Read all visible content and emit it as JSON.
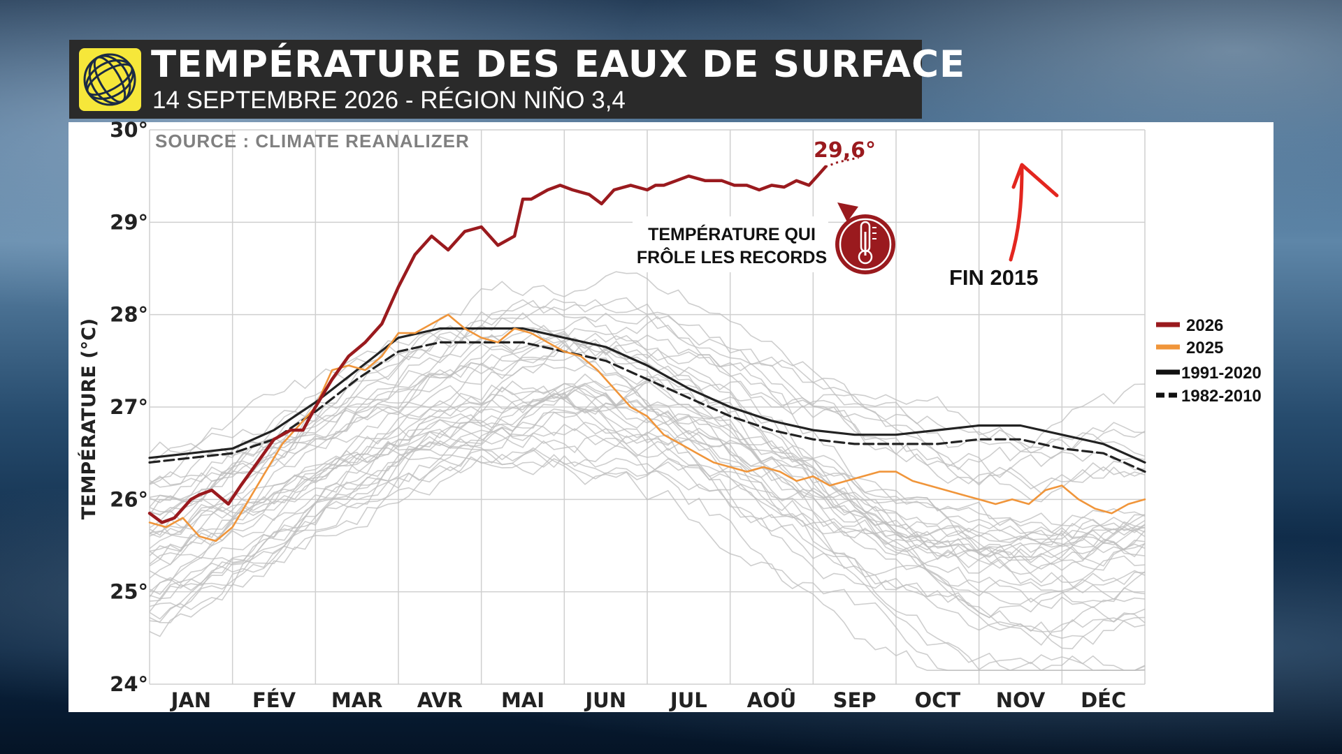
{
  "header": {
    "title": "TEMPÉRATURE DES EAUX DE SURFACE",
    "subtitle": "14 SEPTEMBRE 2026 - RÉGION NIÑO 3,4"
  },
  "colors": {
    "series_2026": "#9a1a1e",
    "series_2025": "#f0953a",
    "climatology": "#222222",
    "historical": "#bdbdbd",
    "logo": "#f6e73a"
  },
  "chart_data": {
    "type": "line",
    "source_label": "SOURCE : CLIMATE REANALIZER",
    "ylabel": "TEMPÉRATURE (°C)",
    "ylim": [
      24,
      30
    ],
    "yticks": [
      "24°",
      "25°",
      "26°",
      "27°",
      "28°",
      "29°",
      "30°"
    ],
    "xlim": [
      0,
      12
    ],
    "months": [
      "JAN",
      "FÉV",
      "MAR",
      "AVR",
      "MAI",
      "JUN",
      "JUL",
      "AOÛ",
      "SEP",
      "OCT",
      "NOV",
      "DÉC"
    ],
    "grid": true,
    "legend_position": "right",
    "legend": [
      "2026",
      "2025",
      "1991-2020",
      "1982-2010"
    ],
    "annotations": {
      "peak_label": "29,6°",
      "record_line1": "TEMPÉRATURE QUI",
      "record_line2": "FRÔLE LES RECORDS",
      "fin_label": "FIN 2015"
    },
    "series": [
      {
        "name": "2026",
        "style": "solid",
        "color": "#9a1a1e",
        "x": [
          0,
          0.15,
          0.3,
          0.5,
          0.6,
          0.75,
          0.95,
          1.1,
          1.3,
          1.5,
          1.7,
          1.85,
          2.0,
          2.2,
          2.4,
          2.6,
          2.8,
          3.0,
          3.2,
          3.4,
          3.6,
          3.8,
          4.0,
          4.2,
          4.4,
          4.5,
          4.6,
          4.8,
          4.95,
          5.1,
          5.3,
          5.45,
          5.6,
          5.8,
          6.0,
          6.1,
          6.2,
          6.35,
          6.5,
          6.7,
          6.9,
          7.05,
          7.2,
          7.35,
          7.5,
          7.65,
          7.8,
          7.95,
          8.05,
          8.15
        ],
        "y": [
          25.85,
          25.75,
          25.8,
          26.0,
          26.05,
          26.1,
          25.95,
          26.15,
          26.4,
          26.65,
          26.75,
          26.75,
          27.0,
          27.3,
          27.55,
          27.7,
          27.9,
          28.3,
          28.65,
          28.85,
          28.7,
          28.9,
          28.95,
          28.75,
          28.85,
          29.25,
          29.25,
          29.35,
          29.4,
          29.35,
          29.3,
          29.2,
          29.35,
          29.4,
          29.35,
          29.4,
          29.4,
          29.45,
          29.5,
          29.45,
          29.45,
          29.4,
          29.4,
          29.35,
          29.4,
          29.38,
          29.45,
          29.4,
          29.5,
          29.6
        ]
      },
      {
        "name": "2025",
        "style": "solid",
        "color": "#f0953a",
        "x": [
          0,
          0.2,
          0.4,
          0.6,
          0.8,
          1.0,
          1.2,
          1.4,
          1.6,
          1.8,
          2.0,
          2.2,
          2.4,
          2.6,
          2.8,
          3.0,
          3.2,
          3.4,
          3.6,
          3.8,
          4.0,
          4.2,
          4.4,
          4.6,
          4.8,
          5.0,
          5.2,
          5.4,
          5.6,
          5.8,
          6.0,
          6.2,
          6.4,
          6.6,
          6.8,
          7.0,
          7.2,
          7.4,
          7.6,
          7.8,
          8.0,
          8.2,
          8.4,
          8.6,
          8.8,
          9.0,
          9.2,
          9.4,
          9.6,
          9.8,
          10.0,
          10.2,
          10.4,
          10.6,
          10.8,
          11.0,
          11.2,
          11.4,
          11.6,
          11.8,
          12.0
        ],
        "y": [
          25.75,
          25.7,
          25.8,
          25.6,
          25.55,
          25.7,
          26.0,
          26.3,
          26.6,
          26.8,
          27.0,
          27.4,
          27.45,
          27.4,
          27.55,
          27.8,
          27.8,
          27.9,
          28.0,
          27.85,
          27.75,
          27.7,
          27.85,
          27.8,
          27.7,
          27.6,
          27.55,
          27.4,
          27.2,
          27.0,
          26.9,
          26.7,
          26.6,
          26.5,
          26.4,
          26.35,
          26.3,
          26.35,
          26.3,
          26.2,
          26.25,
          26.15,
          26.2,
          26.25,
          26.3,
          26.3,
          26.2,
          26.15,
          26.1,
          26.05,
          26.0,
          25.95,
          26.0,
          25.95,
          26.1,
          26.15,
          26.0,
          25.9,
          25.85,
          25.95,
          26.0
        ]
      },
      {
        "name": "1991-2020",
        "style": "solid",
        "color": "#222222",
        "x": [
          0,
          0.5,
          1.0,
          1.5,
          2.0,
          2.5,
          3.0,
          3.5,
          4.0,
          4.5,
          5.0,
          5.5,
          6.0,
          6.5,
          7.0,
          7.5,
          8.0,
          8.5,
          9.0,
          9.5,
          10.0,
          10.5,
          11.0,
          11.5,
          12.0
        ],
        "y": [
          26.45,
          26.5,
          26.55,
          26.75,
          27.05,
          27.4,
          27.75,
          27.85,
          27.85,
          27.85,
          27.75,
          27.65,
          27.45,
          27.2,
          27.0,
          26.85,
          26.75,
          26.7,
          26.7,
          26.75,
          26.8,
          26.8,
          26.7,
          26.6,
          26.4
        ]
      },
      {
        "name": "1982-2010",
        "style": "dashed",
        "color": "#222222",
        "x": [
          0,
          0.5,
          1.0,
          1.5,
          2.0,
          2.5,
          3.0,
          3.5,
          4.0,
          4.5,
          5.0,
          5.5,
          6.0,
          6.5,
          7.0,
          7.5,
          8.0,
          8.5,
          9.0,
          9.5,
          10.0,
          10.5,
          11.0,
          11.5,
          12.0
        ],
        "y": [
          26.4,
          26.45,
          26.5,
          26.65,
          26.95,
          27.3,
          27.6,
          27.7,
          27.7,
          27.7,
          27.6,
          27.5,
          27.3,
          27.1,
          26.9,
          26.75,
          26.65,
          26.6,
          26.6,
          26.6,
          26.65,
          26.65,
          26.55,
          26.5,
          26.3
        ]
      }
    ]
  }
}
